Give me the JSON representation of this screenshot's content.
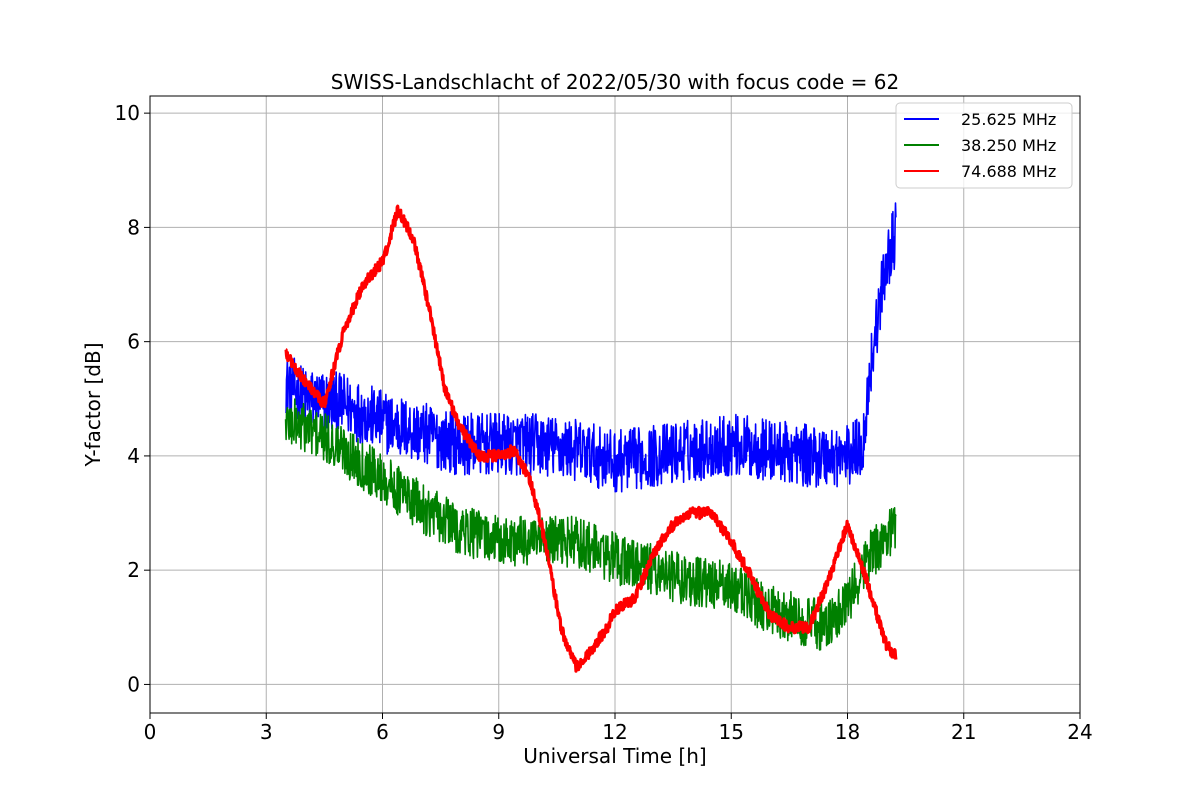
{
  "chart_data": {
    "type": "line",
    "title": "SWISS-Landschlacht of 2022/05/30 with focus code = 62",
    "xlabel": "Universal Time [h]",
    "ylabel": "Y-factor [dB]",
    "xlim": [
      0,
      24
    ],
    "ylim": [
      -0.5,
      10.3
    ],
    "xticks": [
      0,
      3,
      6,
      9,
      12,
      15,
      18,
      21,
      24
    ],
    "xtick_labels": [
      "0",
      "3",
      "6",
      "9",
      "12",
      "15",
      "18",
      "21",
      "24"
    ],
    "yticks": [
      0,
      2,
      4,
      6,
      8,
      10
    ],
    "ytick_labels": [
      "0",
      "2",
      "4",
      "6",
      "8",
      "10"
    ],
    "grid": true,
    "legend_position": "top-right",
    "series": [
      {
        "name": "25.625 MHz",
        "color": "#0000ff",
        "noise": 0.55,
        "x": [
          3.5,
          4.0,
          5.0,
          6.0,
          7.0,
          8.0,
          9.0,
          10.0,
          11.0,
          12.0,
          13.0,
          14.0,
          15.0,
          16.0,
          17.0,
          18.0,
          18.4,
          18.6,
          19.0,
          19.25
        ],
        "values": [
          5.3,
          5.0,
          4.9,
          4.6,
          4.4,
          4.2,
          4.2,
          4.2,
          4.1,
          3.9,
          4.0,
          4.1,
          4.2,
          4.1,
          4.0,
          4.0,
          4.2,
          5.6,
          7.4,
          7.9
        ]
      },
      {
        "name": "38.250 MHz",
        "color": "#008000",
        "noise": 0.45,
        "x": [
          3.5,
          4.0,
          5.0,
          6.0,
          7.0,
          8.0,
          9.0,
          10.0,
          11.0,
          12.0,
          13.0,
          14.0,
          15.0,
          16.0,
          17.0,
          17.5,
          18.0,
          18.5,
          19.0,
          19.25
        ],
        "values": [
          4.6,
          4.5,
          4.1,
          3.6,
          3.1,
          2.7,
          2.5,
          2.5,
          2.5,
          2.2,
          2.0,
          1.8,
          1.7,
          1.3,
          1.1,
          1.0,
          1.4,
          2.2,
          2.6,
          2.8
        ]
      },
      {
        "name": "74.688 MHz",
        "color": "#ff0000",
        "noise": 0.1,
        "x": [
          3.5,
          4.0,
          4.5,
          5.0,
          5.5,
          6.0,
          6.4,
          6.8,
          7.2,
          7.6,
          8.0,
          8.5,
          9.0,
          9.4,
          9.8,
          10.2,
          10.6,
          11.0,
          11.4,
          11.8,
          12.0,
          12.5,
          13.0,
          13.5,
          14.0,
          14.5,
          15.0,
          15.5,
          16.0,
          16.5,
          17.0,
          17.5,
          18.0,
          18.5,
          19.0,
          19.25
        ],
        "values": [
          5.8,
          5.3,
          4.9,
          6.2,
          7.0,
          7.4,
          8.3,
          7.8,
          6.6,
          5.2,
          4.5,
          4.0,
          4.0,
          4.1,
          3.6,
          2.5,
          1.0,
          0.3,
          0.6,
          1.0,
          1.3,
          1.5,
          2.3,
          2.8,
          3.0,
          3.0,
          2.5,
          1.9,
          1.2,
          1.0,
          1.0,
          1.8,
          2.8,
          1.8,
          0.7,
          0.5
        ]
      }
    ]
  }
}
